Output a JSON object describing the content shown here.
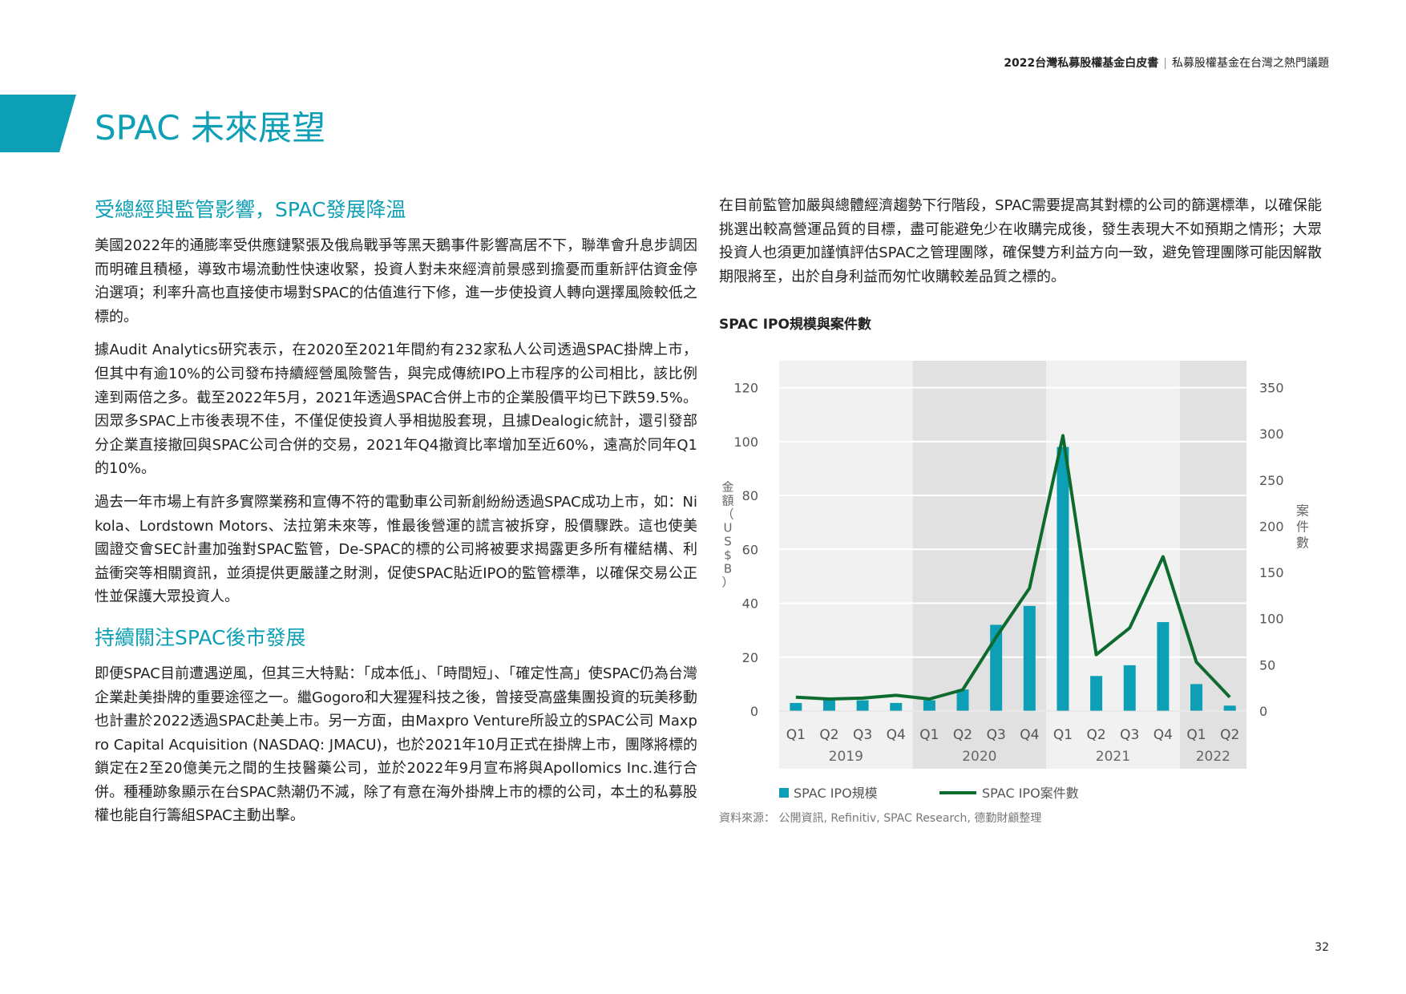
{
  "header": {
    "bold": "2022台灣私募股權基金白皮書",
    "separator": "|",
    "rest": "私募股權基金在台灣之熱門議題"
  },
  "page_title": "SPAC 未來展望",
  "left": {
    "section1_title": "受總經與監管影響，SPAC發展降溫",
    "p1": "美國2022年的通膨率受供應鏈緊張及俄烏戰爭等黑天鵝事件影響高居不下，聯準會升息步調因而明確且積極，導致市場流動性快速收緊，投資人對未來經濟前景感到擔憂而重新評估資金停泊選項；利率升高也直接使市場對SPAC的估值進行下修，進一步使投資人轉向選擇風險較低之標的。",
    "p2": "據Audit Analytics研究表示，在2020至2021年間約有232家私人公司透過SPAC掛牌上市，但其中有逾10%的公司發布持續經營風險警告，與完成傳統IPO上市程序的公司相比，該比例達到兩倍之多。截至2022年5月，2021年透過SPAC合併上市的企業股價平均已下跌59.5%。因眾多SPAC上市後表現不佳，不僅促使投資人爭相拋股套現，且據Dealogic統計，還引發部分企業直接撤回與SPAC公司合併的交易，2021年Q4撤資比率增加至近60%，遠高於同年Q1的10%。",
    "p3": "過去一年市場上有許多實際業務和宣傳不符的電動車公司新創紛紛透過SPAC成功上市，如：Nikola、Lordstown Motors、法拉第未來等，惟最後營運的謊言被拆穿，股價驟跌。這也使美國證交會SEC計畫加強對SPAC監管，De-SPAC的標的公司將被要求揭露更多所有權結構、利益衝突等相關資訊，並須提供更嚴謹之財測，促使SPAC貼近IPO的監管標準，以確保交易公正性並保護大眾投資人。",
    "section2_title": "持續關注SPAC後市發展",
    "p4": "即便SPAC目前遭遇逆風，但其三大特點：「成本低」、「時間短」、「確定性高」使SPAC仍為台灣企業赴美掛牌的重要途徑之一。繼Gogoro和大猩猩科技之後，曾接受高盛集團投資的玩美移動也計畫於2022透過SPAC赴美上市。另一方面，由Maxpro Venture所設立的SPAC公司 Maxpro Capital Acquisition (NASDAQ: JMACU)，也於2021年10月正式在掛牌上市，團隊將標的鎖定在2至20億美元之間的生技醫藥公司，並於2022年9月宣布將與Apollomics Inc.進行合併。種種跡象顯示在台SPAC熱潮仍不減，除了有意在海外掛牌上市的標的公司，本土的私募股權也能自行籌組SPAC主動出擊。"
  },
  "right": {
    "p1": "在目前監管加嚴與總體經濟趨勢下行階段，SPAC需要提高其對標的公司的篩選標準，以確保能挑選出較高營運品質的目標，盡可能避免少在收購完成後，發生表現大不如預期之情形；大眾投資人也須更加謹慎評估SPAC之管理團隊，確保雙方利益方向一致，避免管理團隊可能因解散期限將至，出於自身利益而匆忙收購較差品質之標的。"
  },
  "chart_title": "SPAC IPO規模與案件數",
  "source": "資料來源： 公開資訊, Refinitiv, SPAC Research, 德勤財顧整理",
  "page_number": "32",
  "colors": {
    "accent": "#0d9fb5",
    "bar": "#0d9fb5",
    "line": "#0e6b2f",
    "band_light": "#f1f1f1",
    "band_dark": "#e1e1e1"
  },
  "chart_data": {
    "type": "bar",
    "title": "SPAC IPO規模與案件數",
    "categories": [
      "Q1",
      "Q2",
      "Q3",
      "Q4",
      "Q1",
      "Q2",
      "Q3",
      "Q4",
      "Q1",
      "Q2",
      "Q3",
      "Q4",
      "Q1",
      "Q2"
    ],
    "groups": [
      {
        "label": "2019",
        "count": 4
      },
      {
        "label": "2020",
        "count": 4
      },
      {
        "label": "2021",
        "count": 4
      },
      {
        "label": "2022",
        "count": 2
      }
    ],
    "series": [
      {
        "name": "SPAC IPO規模",
        "type": "bar",
        "axis": "left",
        "values": [
          3,
          4,
          4,
          3,
          4,
          8,
          32,
          39,
          98,
          13,
          17,
          33,
          10,
          2
        ]
      },
      {
        "name": "SPAC IPO案件數",
        "type": "line",
        "axis": "right",
        "values": [
          15,
          13,
          14,
          17,
          13,
          23,
          80,
          133,
          298,
          61,
          90,
          167,
          53,
          15
        ]
      }
    ],
    "ylabel": "金額（US$B）",
    "y2label": "案件數",
    "ylim": [
      0,
      130
    ],
    "yticks": [
      0,
      20,
      40,
      60,
      80,
      100,
      120
    ],
    "y2lim": [
      0,
      379.17
    ],
    "y2ticks": [
      0,
      50,
      100,
      150,
      200,
      250,
      300,
      350
    ],
    "grid": true,
    "legend": "bottom"
  }
}
